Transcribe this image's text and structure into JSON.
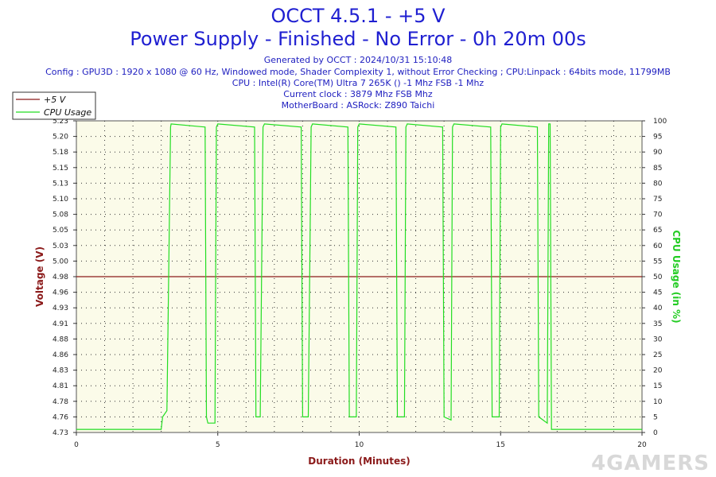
{
  "header": {
    "title": "OCCT 4.5.1 - +5 V",
    "subtitle": "Power Supply - Finished - No Error - 0h 20m 00s",
    "generated": "Generated by OCCT : 2024/10/31 15:10:48",
    "config": "Config : GPU3D : 1920 x 1080 @ 60 Hz, Windowed mode, Shader Complexity 1, without Error Checking ; CPU:Linpack : 64bits mode, 11799MB",
    "cpu": "CPU : Intel(R) Core(TM) Ultra 7 265K () -1 Mhz FSB -1 Mhz",
    "clock": "Current clock : 3879 Mhz FSB  Mhz",
    "motherboard": "MotherBoard : ASRock: Z890 Taichi"
  },
  "watermark": "4GAMERS",
  "colors": {
    "title": "#1f1fd1",
    "voltage_axis": "#8b1a1a",
    "cpu_axis": "#22cc22",
    "plot_bg": "#fbfbe9",
    "voltage_line": "#8b1a1a",
    "cpu_line": "#22dd22"
  },
  "chart_data": {
    "type": "line",
    "xlabel": "Duration (Minutes)",
    "ylabel_left": "Voltage (V)",
    "ylabel_right": "CPU Usage (in %)",
    "xlim": [
      0,
      20
    ],
    "ylim_left": [
      4.73,
      5.23
    ],
    "ylim_right": [
      0,
      100
    ],
    "x_ticks": [
      0,
      5,
      10,
      15,
      20
    ],
    "y_ticks_left": [
      "4.73",
      "4.76",
      "4.78",
      "4.81",
      "4.83",
      "4.86",
      "4.88",
      "4.91",
      "4.93",
      "4.96",
      "4.98",
      "5.00",
      "5.03",
      "5.05",
      "5.08",
      "5.10",
      "5.13",
      "5.15",
      "5.18",
      "5.20",
      "5.23"
    ],
    "y_ticks_right": [
      0,
      5,
      10,
      15,
      20,
      25,
      30,
      35,
      40,
      45,
      50,
      55,
      60,
      65,
      70,
      75,
      80,
      85,
      90,
      95,
      100
    ],
    "grid": true,
    "legend_position": "top-left",
    "series": [
      {
        "name": "+5 V",
        "axis": "left",
        "x": [
          0,
          20
        ],
        "y": [
          4.98,
          4.98
        ]
      },
      {
        "name": "CPU Usage",
        "axis": "right",
        "x": [
          0,
          3.0,
          3.05,
          3.2,
          3.25,
          3.33,
          3.35,
          4.55,
          4.6,
          4.65,
          4.9,
          4.95,
          5.0,
          6.3,
          6.35,
          6.5,
          6.6,
          6.65,
          7.95,
          8.0,
          8.2,
          8.3,
          8.35,
          9.6,
          9.65,
          9.9,
          9.95,
          10.0,
          11.3,
          11.35,
          11.6,
          11.65,
          11.7,
          12.95,
          13.0,
          13.25,
          13.3,
          13.35,
          14.65,
          14.7,
          14.95,
          15.0,
          15.05,
          16.3,
          16.35,
          16.65,
          16.7,
          16.75,
          16.8,
          16.85,
          20
        ],
        "y": [
          1,
          1,
          5,
          7,
          40,
          98,
          99,
          98,
          5,
          3,
          3,
          98,
          99,
          98,
          5,
          5,
          98,
          99,
          98,
          5,
          5,
          98,
          99,
          98,
          5,
          5,
          98,
          99,
          98,
          5,
          5,
          98,
          99,
          98,
          5,
          4,
          98,
          99,
          98,
          5,
          5,
          98,
          99,
          98,
          5,
          3,
          99,
          99,
          1,
          1,
          1
        ]
      }
    ]
  }
}
